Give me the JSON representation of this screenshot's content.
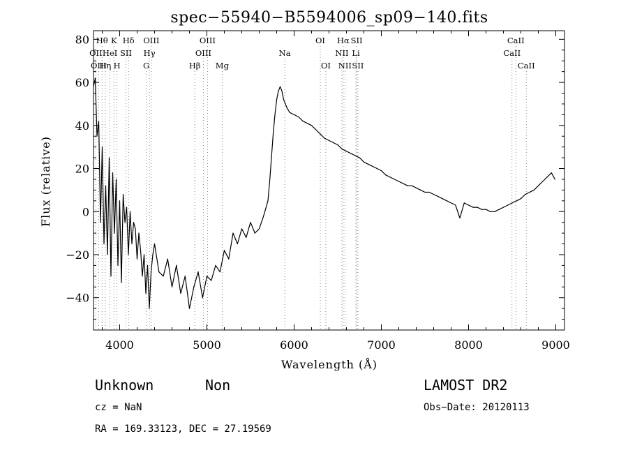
{
  "chart_data": {
    "type": "line",
    "title": "spec−55940−B5594006_sp09−140.fits",
    "xlabel": "Wavelength (Å)",
    "ylabel": "Flux (relative)",
    "xlim": [
      3700,
      9100
    ],
    "ylim": [
      -55,
      84
    ],
    "xticks": [
      4000,
      5000,
      6000,
      7000,
      8000,
      9000
    ],
    "yticks": [
      -40,
      -20,
      0,
      20,
      40,
      60,
      80
    ],
    "ytick_labels": [
      "−40",
      "−20",
      "0",
      "20",
      "40",
      "60",
      "80"
    ],
    "series": [
      {
        "color": "#000000",
        "x": [
          3700,
          3720,
          3740,
          3760,
          3780,
          3800,
          3820,
          3840,
          3860,
          3880,
          3900,
          3920,
          3940,
          3960,
          3980,
          4000,
          4020,
          4040,
          4060,
          4080,
          4100,
          4120,
          4140,
          4160,
          4180,
          4200,
          4220,
          4240,
          4260,
          4280,
          4300,
          4320,
          4340,
          4360,
          4380,
          4400,
          4450,
          4500,
          4550,
          4600,
          4650,
          4700,
          4750,
          4800,
          4850,
          4900,
          4950,
          5000,
          5050,
          5100,
          5150,
          5200,
          5250,
          5300,
          5350,
          5400,
          5450,
          5500,
          5550,
          5600,
          5650,
          5700,
          5720,
          5740,
          5760,
          5780,
          5800,
          5820,
          5840,
          5860,
          5880,
          5900,
          5920,
          5950,
          6000,
          6050,
          6100,
          6150,
          6200,
          6250,
          6300,
          6350,
          6400,
          6450,
          6500,
          6550,
          6600,
          6650,
          6700,
          6750,
          6800,
          6850,
          6900,
          6950,
          7000,
          7050,
          7100,
          7150,
          7200,
          7250,
          7300,
          7350,
          7400,
          7450,
          7500,
          7550,
          7600,
          7650,
          7700,
          7750,
          7800,
          7850,
          7900,
          7950,
          8000,
          8050,
          8100,
          8150,
          8200,
          8250,
          8300,
          8350,
          8400,
          8450,
          8500,
          8550,
          8600,
          8650,
          8700,
          8750,
          8800,
          8850,
          8900,
          8950,
          8990
        ],
        "y": [
          58,
          62,
          35,
          42,
          -5,
          30,
          -15,
          12,
          -20,
          25,
          -30,
          18,
          -10,
          15,
          -25,
          5,
          -33,
          8,
          -5,
          2,
          -20,
          0,
          -15,
          -5,
          -8,
          -22,
          -10,
          -18,
          -30,
          -20,
          -38,
          -25,
          -45,
          -28,
          -20,
          -15,
          -28,
          -30,
          -22,
          -35,
          -25,
          -38,
          -30,
          -45,
          -35,
          -28,
          -40,
          -30,
          -32,
          -25,
          -28,
          -18,
          -22,
          -10,
          -15,
          -8,
          -12,
          -5,
          -10,
          -8,
          -2,
          5,
          14,
          25,
          36,
          45,
          52,
          56,
          58,
          56,
          52,
          50,
          48,
          46,
          45,
          44,
          42,
          41,
          40,
          38,
          36,
          34,
          33,
          32,
          31,
          29,
          28,
          27,
          26,
          25,
          23,
          22,
          21,
          20,
          19,
          17,
          16,
          15,
          14,
          13,
          12,
          12,
          11,
          10,
          9,
          9,
          8,
          7,
          6,
          5,
          4,
          3,
          -3,
          4,
          3,
          2,
          2,
          1,
          1,
          0,
          0,
          1,
          2,
          3,
          4,
          5,
          6,
          8,
          9,
          10,
          12,
          14,
          16,
          18,
          15
        ]
      }
    ],
    "line_marks": [
      {
        "name": "Hθ",
        "x": 3798,
        "row": 1
      },
      {
        "name": "K",
        "x": 3934,
        "row": 1
      },
      {
        "name": "Hδ",
        "x": 4102,
        "row": 1
      },
      {
        "name": "OII",
        "x": 3727,
        "row": 2
      },
      {
        "name": "HeI",
        "x": 3889,
        "row": 2
      },
      {
        "name": "SII",
        "x": 4072,
        "row": 2
      },
      {
        "name": "OIII",
        "x": 3760,
        "row": 3
      },
      {
        "name": "Hη",
        "x": 3835,
        "row": 3
      },
      {
        "name": "H",
        "x": 3969,
        "row": 3
      },
      {
        "name": "OIII",
        "x": 4363,
        "row": 1
      },
      {
        "name": "Hγ",
        "x": 4341,
        "row": 2
      },
      {
        "name": "G",
        "x": 4305,
        "row": 3
      },
      {
        "name": "OIII",
        "x": 5007,
        "row": 1
      },
      {
        "name": "OIII",
        "x": 4959,
        "row": 2
      },
      {
        "name": "Hβ",
        "x": 4861,
        "row": 3
      },
      {
        "name": "Mg",
        "x": 5175,
        "row": 3
      },
      {
        "name": "Na",
        "x": 5893,
        "row": 2
      },
      {
        "name": "OI",
        "x": 6300,
        "row": 1
      },
      {
        "name": "OI",
        "x": 6364,
        "row": 3
      },
      {
        "name": "Hα",
        "x": 6563,
        "row": 1
      },
      {
        "name": "SII",
        "x": 6717,
        "row": 1
      },
      {
        "name": "NII",
        "x": 6548,
        "row": 2
      },
      {
        "name": "Li",
        "x": 6708,
        "row": 2
      },
      {
        "name": "NII",
        "x": 6583,
        "row": 3
      },
      {
        "name": "SII",
        "x": 6731,
        "row": 3
      },
      {
        "name": "CaII",
        "x": 8542,
        "row": 1
      },
      {
        "name": "CaII",
        "x": 8498,
        "row": 2
      },
      {
        "name": "CaII",
        "x": 8662,
        "row": 3
      }
    ]
  },
  "info": {
    "class": "Unknown",
    "subclass": "Non",
    "cz": "cz = NaN",
    "radec": "RA = 169.33123, DEC =  27.19569",
    "survey": "LAMOST DR2",
    "obsdate": "Obs−Date: 20120113"
  }
}
